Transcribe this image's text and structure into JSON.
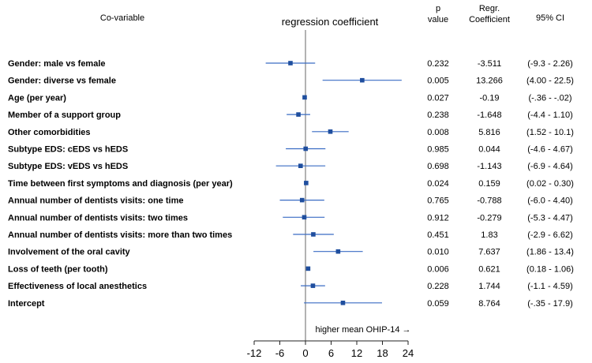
{
  "header": {
    "covariable": "Co-variable",
    "regression_coefficient": "regression coefficient",
    "p_line1": "p",
    "p_line2": "value",
    "regr_line1": "Regr.",
    "regr_line2": "Coefficient",
    "ci": "95% CI"
  },
  "direction_note": "higher mean OHIP-14 →",
  "chart_data": {
    "type": "forest",
    "title": "regression coefficient",
    "xlabel": "",
    "xlim": [
      -12,
      24
    ],
    "reference_line": 0,
    "x_ticks": [
      "-12",
      "-6",
      "0",
      "6",
      "12",
      "18",
      "24"
    ],
    "columns": [
      "Co-variable",
      "p value",
      "Regr. Coefficient",
      "95% CI"
    ],
    "rows": [
      {
        "label": "Gender: male vs female",
        "p": "0.232",
        "coef_text": "-3.511",
        "ci_text": "(-9.3 - 2.26)",
        "coef": -3.511,
        "lo": -9.3,
        "hi": 2.26
      },
      {
        "label": "Gender: diverse vs female",
        "p": "0.005",
        "coef_text": "13.266",
        "ci_text": "(4.00 - 22.5)",
        "coef": 13.266,
        "lo": 4.0,
        "hi": 22.5
      },
      {
        "label": "Age (per year)",
        "p": "0.027",
        "coef_text": "-0.19",
        "ci_text": "(-.36 - -.02)",
        "coef": -0.19,
        "lo": -0.36,
        "hi": -0.02
      },
      {
        "label": "Member of a support group",
        "p": "0.238",
        "coef_text": "-1.648",
        "ci_text": "(-4.4 - 1.10)",
        "coef": -1.648,
        "lo": -4.4,
        "hi": 1.1
      },
      {
        "label": "Other comorbidities",
        "p": "0.008",
        "coef_text": "5.816",
        "ci_text": "(1.52 - 10.1)",
        "coef": 5.816,
        "lo": 1.52,
        "hi": 10.1
      },
      {
        "label": "Subtype EDS: cEDS vs hEDS",
        "p": "0.985",
        "coef_text": "0.044",
        "ci_text": "(-4.6 - 4.67)",
        "coef": 0.044,
        "lo": -4.6,
        "hi": 4.67
      },
      {
        "label": "Subtype EDS: vEDS vs hEDS",
        "p": "0.698",
        "coef_text": "-1.143",
        "ci_text": "(-6.9 - 4.64)",
        "coef": -1.143,
        "lo": -6.9,
        "hi": 4.64
      },
      {
        "label": "Time between first symptoms and diagnosis (per year)",
        "p": "0.024",
        "coef_text": "0.159",
        "ci_text": "(0.02 - 0.30)",
        "coef": 0.159,
        "lo": 0.02,
        "hi": 0.3
      },
      {
        "label": "Annual number of dentists visits: one time",
        "p": "0.765",
        "coef_text": "-0.788",
        "ci_text": "(-6.0 - 4.40)",
        "coef": -0.788,
        "lo": -6.0,
        "hi": 4.4
      },
      {
        "label": "Annual number of dentists visits: two times",
        "p": "0.912",
        "coef_text": "-0.279",
        "ci_text": "(-5.3 - 4.47)",
        "coef": -0.279,
        "lo": -5.3,
        "hi": 4.47
      },
      {
        "label": "Annual number of dentists visits: more than two times",
        "p": "0.451",
        "coef_text": "1.83",
        "ci_text": "(-2.9 - 6.62)",
        "coef": 1.83,
        "lo": -2.9,
        "hi": 6.62
      },
      {
        "label": "Involvement of the oral cavity",
        "p": "0.010",
        "coef_text": "7.637",
        "ci_text": "(1.86 - 13.4)",
        "coef": 7.637,
        "lo": 1.86,
        "hi": 13.4
      },
      {
        "label": "Loss of teeth (per tooth)",
        "p": "0.006",
        "coef_text": "0.621",
        "ci_text": "(0.18 - 1.06)",
        "coef": 0.621,
        "lo": 0.18,
        "hi": 1.06
      },
      {
        "label": "Effectiveness of local anesthetics",
        "p": "0.228",
        "coef_text": "1.744",
        "ci_text": "(-1.1 - 4.59)",
        "coef": 1.744,
        "lo": -1.1,
        "hi": 4.59
      },
      {
        "label": "Intercept",
        "p": "0.059",
        "coef_text": "8.764",
        "ci_text": "(-.35 - 17.9)",
        "coef": 8.764,
        "lo": -0.35,
        "hi": 17.9
      }
    ],
    "colors": {
      "marker": "#1f4e9e",
      "ci_line": "#3a6cc4",
      "reference_line": "#888888",
      "axis": "#222222"
    }
  }
}
